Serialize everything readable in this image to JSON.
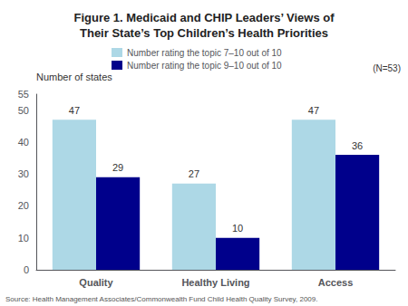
{
  "chart_data": {
    "type": "bar",
    "title": "Figure 1. Medicaid and CHIP Leaders’ Views of\nTheir State’s Top Children’s Health Priorities",
    "ylabel": "Number of states",
    "categories": [
      "Quality",
      "Healthy Living",
      "Access"
    ],
    "series": [
      {
        "name": "Number rating the topic 7–10 out of 10",
        "color": "#add8e6",
        "values": [
          47,
          27,
          47
        ]
      },
      {
        "name": "Number rating the topic 9–10 out of 10",
        "color": "#00008b",
        "values": [
          29,
          10,
          36
        ]
      }
    ],
    "ylim": [
      0,
      55
    ],
    "yticks": [
      0,
      10,
      20,
      30,
      40,
      50
    ],
    "grid": false,
    "legend": "top",
    "data_labels": true,
    "annotations": [
      "(N=53)",
      "Source: Health Management Associates/Commonwealth Fund Child Health Quality Survey, 2009."
    ]
  }
}
